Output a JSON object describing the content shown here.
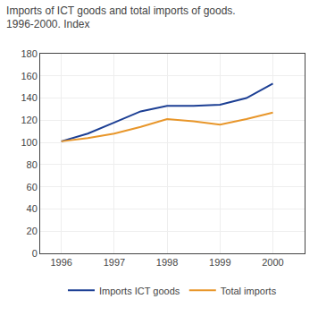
{
  "chart_data": {
    "type": "line",
    "title": "Imports of ICT goods and total imports of goods.",
    "subtitle": "1996-2000. Index",
    "x": [
      1996,
      1996.5,
      1997,
      1997.5,
      1998,
      1998.5,
      1999,
      1999.5,
      2000
    ],
    "series": [
      {
        "name": "Imports ICT goods",
        "color": "#1c3f94",
        "values": [
          101,
          108,
          118,
          128,
          133,
          133,
          134,
          140,
          153
        ]
      },
      {
        "name": "Total imports",
        "color": "#e8962a",
        "values": [
          101,
          104,
          108,
          114,
          121,
          119,
          116,
          121,
          127
        ]
      }
    ],
    "xlim": [
      1995.6,
      2000.6
    ],
    "xticks": [
      1996,
      1997,
      1998,
      1999,
      2000
    ],
    "ylim": [
      0,
      180
    ],
    "yticks": [
      0,
      20,
      40,
      60,
      80,
      100,
      120,
      140,
      160,
      180
    ],
    "grid": true,
    "legend": "bottom"
  }
}
